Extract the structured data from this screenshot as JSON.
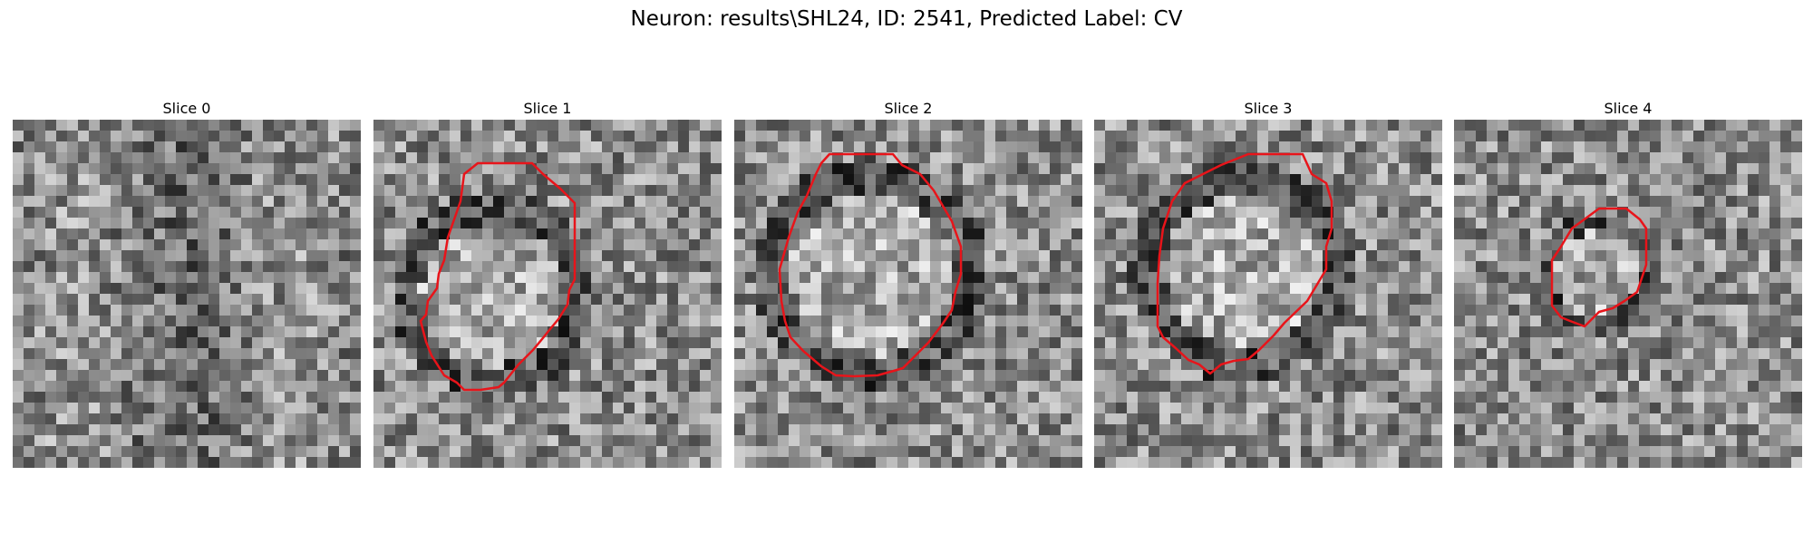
{
  "figure": {
    "title": "Neuron: results\\SHL24, ID: 2541, Predicted Label: CV",
    "contour_color": "#e8141a",
    "panels": [
      {
        "title": "Slice 0",
        "has_contour": false,
        "seed": 11
      },
      {
        "title": "Slice 1",
        "has_contour": true,
        "seed": 23
      },
      {
        "title": "Slice 2",
        "has_contour": true,
        "seed": 37
      },
      {
        "title": "Slice 3",
        "has_contour": true,
        "seed": 41
      },
      {
        "title": "Slice 4",
        "has_contour": true,
        "seed": 53
      }
    ]
  }
}
